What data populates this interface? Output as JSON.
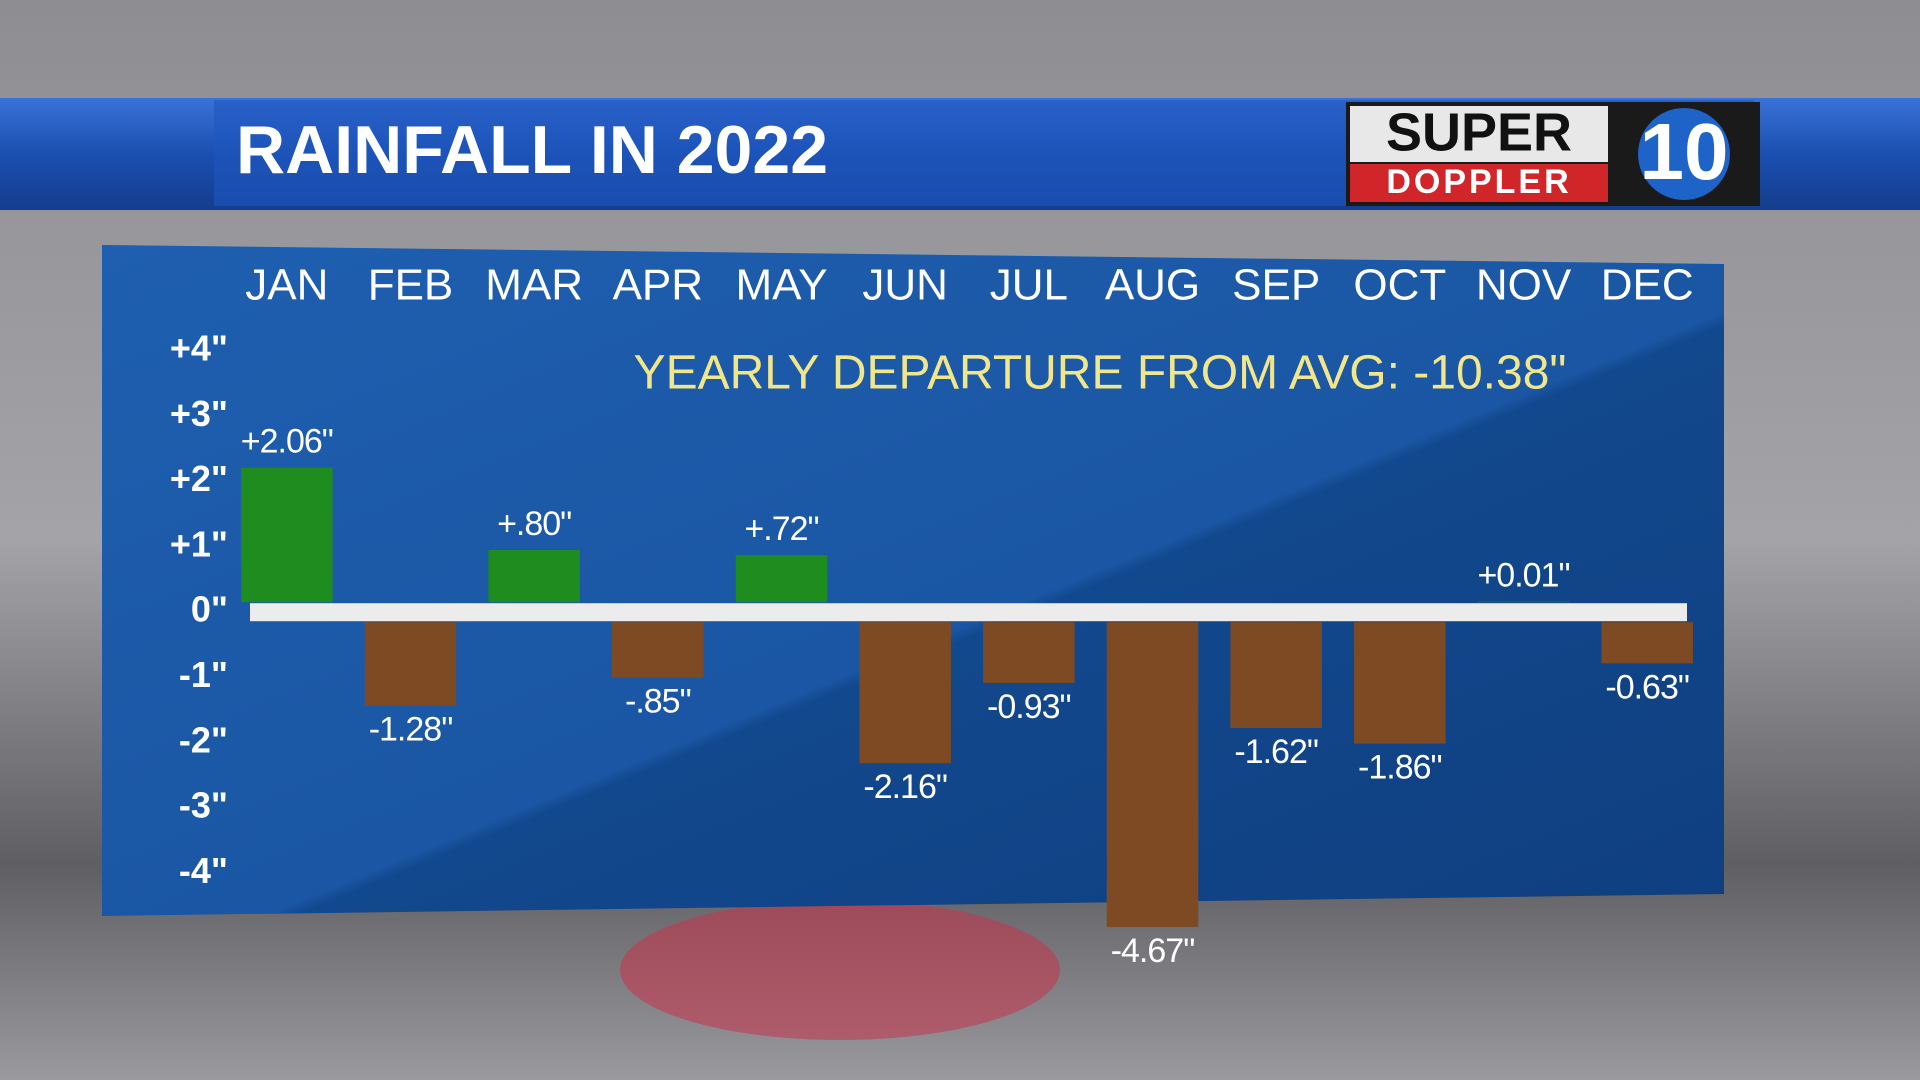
{
  "logo": {
    "top": "SUPER",
    "bottom": "DOPPLER",
    "number": "10"
  },
  "chart_data": {
    "type": "bar",
    "title": "RAINFALL IN 2022",
    "annotation": "YEARLY DEPARTURE FROM AVG: -10.38\"",
    "categories": [
      "JAN",
      "FEB",
      "MAR",
      "APR",
      "MAY",
      "JUN",
      "JUL",
      "AUG",
      "SEP",
      "OCT",
      "NOV",
      "DEC"
    ],
    "values": [
      2.06,
      -1.28,
      0.8,
      -0.85,
      0.72,
      -2.16,
      -0.93,
      -4.67,
      -1.62,
      -1.86,
      0.01,
      -0.63
    ],
    "value_labels": [
      "+2.06\"",
      "-1.28\"",
      "+.80\"",
      "-.85\"",
      "+.72\"",
      "-2.16\"",
      "-0.93\"",
      "-4.67\"",
      "-1.62\"",
      "-1.86\"",
      "+0.01\"",
      "-0.63\""
    ],
    "positive_color": "#1e8c1e",
    "negative_color": "#7d4a24",
    "ylim": [
      -4.7,
      4.4
    ],
    "yticks": [
      {
        "value": 4,
        "label": "+4\""
      },
      {
        "value": 3,
        "label": "+3\""
      },
      {
        "value": 2,
        "label": "+2\""
      },
      {
        "value": 1,
        "label": "+1\""
      },
      {
        "value": 0,
        "label": "0\""
      },
      {
        "value": -1,
        "label": "-1\""
      },
      {
        "value": -2,
        "label": "-2\""
      },
      {
        "value": -3,
        "label": "-3\""
      },
      {
        "value": -4,
        "label": "-4\""
      }
    ]
  }
}
